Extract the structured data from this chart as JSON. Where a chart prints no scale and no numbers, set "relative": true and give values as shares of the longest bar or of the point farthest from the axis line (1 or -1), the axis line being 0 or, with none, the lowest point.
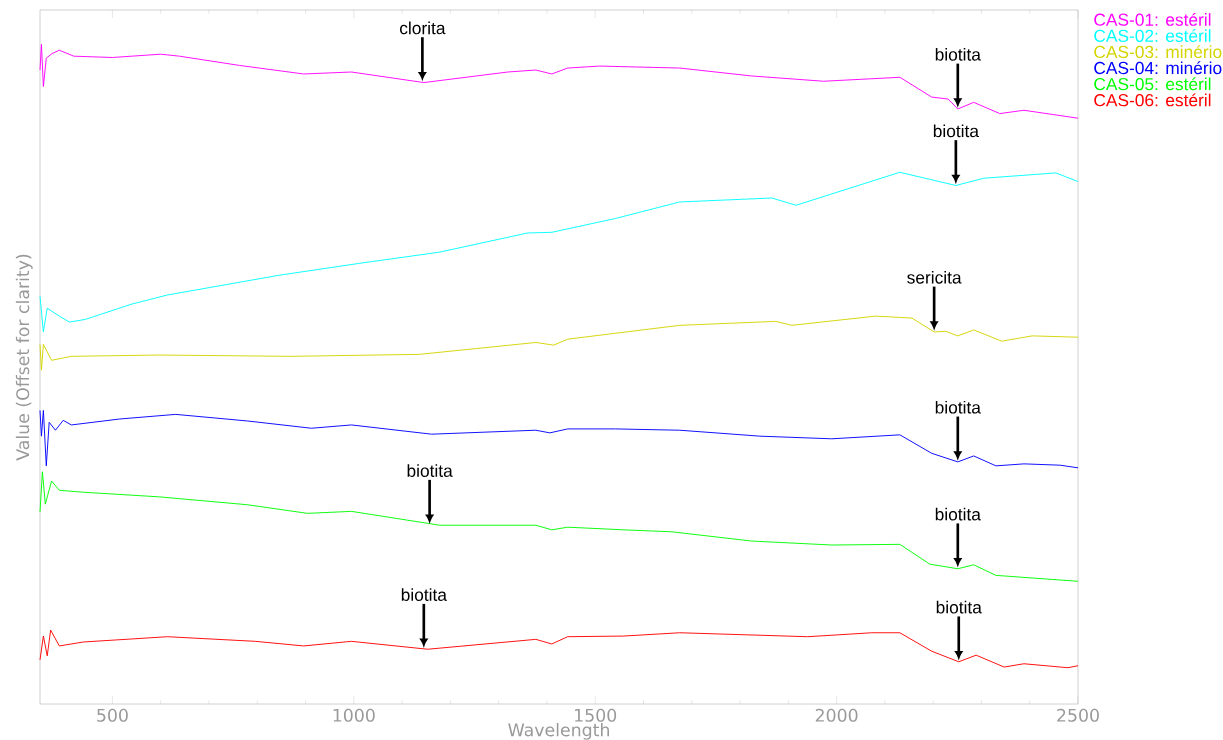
{
  "chart_data": {
    "type": "line",
    "relative": true,
    "xlabel": "Wavelength",
    "ylabel": "Value (Offset for clarity)",
    "xlim": [
      350,
      2500
    ],
    "xticks": [
      500,
      1000,
      1500,
      2000,
      2500
    ],
    "legend": "top right",
    "series": [
      {
        "name": "CAS-01: estéril",
        "color": "#ff00ff",
        "x": [
          350,
          353,
          357,
          363,
          375,
          390,
          420,
          500,
          600,
          639,
          763,
          896,
          995,
          1145,
          1319,
          1377,
          1410,
          1443,
          1509,
          1675,
          1824,
          1973,
          2131,
          2197,
          2231,
          2251,
          2284,
          2338,
          2388,
          2500
        ],
        "values": [
          0.961,
          1.0,
          0.936,
          0.979,
          0.986,
          0.991,
          0.982,
          0.98,
          0.985,
          0.982,
          0.968,
          0.955,
          0.958,
          0.942,
          0.958,
          0.961,
          0.955,
          0.964,
          0.967,
          0.964,
          0.952,
          0.944,
          0.95,
          0.92,
          0.917,
          0.902,
          0.912,
          0.895,
          0.9,
          0.888
        ]
      },
      {
        "name": "CAS-02: estéril",
        "color": "#00ffff",
        "x": [
          350,
          357,
          365,
          390,
          411,
          444,
          539,
          614,
          846,
          1012,
          1178,
          1360,
          1410,
          1542,
          1675,
          1866,
          1916,
          2131,
          2247,
          2305,
          2454,
          2500
        ],
        "values": [
          0.618,
          0.564,
          0.6,
          0.588,
          0.579,
          0.583,
          0.606,
          0.62,
          0.65,
          0.668,
          0.685,
          0.714,
          0.715,
          0.736,
          0.761,
          0.767,
          0.756,
          0.806,
          0.786,
          0.797,
          0.805,
          0.792
        ]
      },
      {
        "name": "CAS-03: minério",
        "color": "#d4d400",
        "x": [
          350,
          353,
          357,
          374,
          415,
          597,
          871,
          1136,
          1377,
          1414,
          1443,
          1542,
          1675,
          1874,
          1907,
          2081,
          2156,
          2202,
          2226,
          2251,
          2284,
          2342,
          2405,
          2500
        ],
        "values": [
          0.545,
          0.506,
          0.545,
          0.521,
          0.527,
          0.529,
          0.527,
          0.53,
          0.548,
          0.544,
          0.553,
          0.562,
          0.574,
          0.58,
          0.574,
          0.588,
          0.585,
          0.564,
          0.565,
          0.558,
          0.567,
          0.55,
          0.558,
          0.556
        ]
      },
      {
        "name": "CAS-04: minério",
        "color": "#0000ff",
        "x": [
          350,
          353,
          357,
          363,
          369,
          382,
          398,
          415,
          515,
          631,
          780,
          912,
          995,
          1161,
          1377,
          1406,
          1443,
          1542,
          1675,
          1841,
          1990,
          2131,
          2197,
          2251,
          2284,
          2330,
          2388,
          2463,
          2500
        ],
        "values": [
          0.445,
          0.406,
          0.445,
          0.361,
          0.427,
          0.415,
          0.43,
          0.423,
          0.432,
          0.439,
          0.429,
          0.418,
          0.423,
          0.409,
          0.415,
          0.411,
          0.417,
          0.417,
          0.415,
          0.406,
          0.402,
          0.408,
          0.38,
          0.367,
          0.376,
          0.361,
          0.364,
          0.362,
          0.358
        ]
      },
      {
        "name": "CAS-05: estéril",
        "color": "#00ff00",
        "x": [
          350,
          355,
          361,
          374,
          390,
          440,
          597,
          780,
          904,
          995,
          1178,
          1377,
          1410,
          1443,
          1559,
          1659,
          1824,
          1990,
          2131,
          2193,
          2251,
          2284,
          2330,
          2500
        ],
        "values": [
          0.291,
          0.352,
          0.303,
          0.338,
          0.324,
          0.321,
          0.314,
          0.302,
          0.289,
          0.292,
          0.271,
          0.271,
          0.264,
          0.268,
          0.264,
          0.261,
          0.247,
          0.241,
          0.242,
          0.212,
          0.205,
          0.211,
          0.195,
          0.186
        ]
      },
      {
        "name": "CAS-06: estéril",
        "color": "#ff0000",
        "x": [
          350,
          357,
          365,
          372,
          390,
          440,
          614,
          796,
          896,
          995,
          1153,
          1377,
          1410,
          1443,
          1559,
          1675,
          1940,
          2073,
          2131,
          2197,
          2253,
          2289,
          2347,
          2388,
          2479,
          2500
        ],
        "values": [
          0.067,
          0.103,
          0.073,
          0.112,
          0.088,
          0.094,
          0.102,
          0.095,
          0.088,
          0.095,
          0.083,
          0.098,
          0.091,
          0.102,
          0.103,
          0.108,
          0.102,
          0.108,
          0.108,
          0.08,
          0.064,
          0.074,
          0.056,
          0.061,
          0.055,
          0.058
        ]
      }
    ],
    "annotations": [
      {
        "text": "clorita",
        "x": 1142,
        "y": 0.942
      },
      {
        "text": "biotita",
        "x": 2251,
        "y": 0.902
      },
      {
        "text": "biotita",
        "x": 2247,
        "y": 0.786
      },
      {
        "text": "sericita",
        "x": 2202,
        "y": 0.564
      },
      {
        "text": "biotita",
        "x": 2251,
        "y": 0.367
      },
      {
        "text": "biotita",
        "x": 1157,
        "y": 0.271
      },
      {
        "text": "biotita",
        "x": 2251,
        "y": 0.205
      },
      {
        "text": "biotita",
        "x": 1145,
        "y": 0.083
      },
      {
        "text": "biotita",
        "x": 2253,
        "y": 0.064
      }
    ]
  }
}
